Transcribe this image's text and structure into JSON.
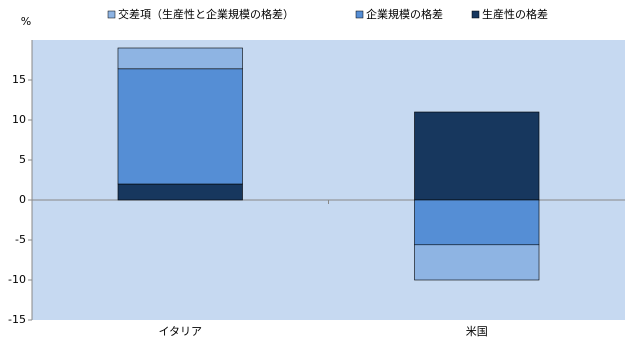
{
  "chart_data": {
    "type": "stacked_bar",
    "y_label": "%",
    "categories": [
      "イタリア",
      "米国"
    ],
    "series": [
      {
        "name": "交差項（生産性と企業規模の格差）",
        "color": "#8eb4e3",
        "values": [
          2.6,
          -4.4
        ]
      },
      {
        "name": "企業規模の格差",
        "color": "#558ed5",
        "values": [
          14.4,
          -5.6
        ]
      },
      {
        "name": "生産性の格差",
        "color": "#17375e",
        "values": [
          2.0,
          11.0
        ]
      }
    ],
    "stack_order": "reverse",
    "ylim": [
      -15,
      20
    ],
    "yticks": [
      -15,
      -10,
      -5,
      0,
      5,
      10,
      15
    ],
    "background": "#c6d9f1"
  }
}
